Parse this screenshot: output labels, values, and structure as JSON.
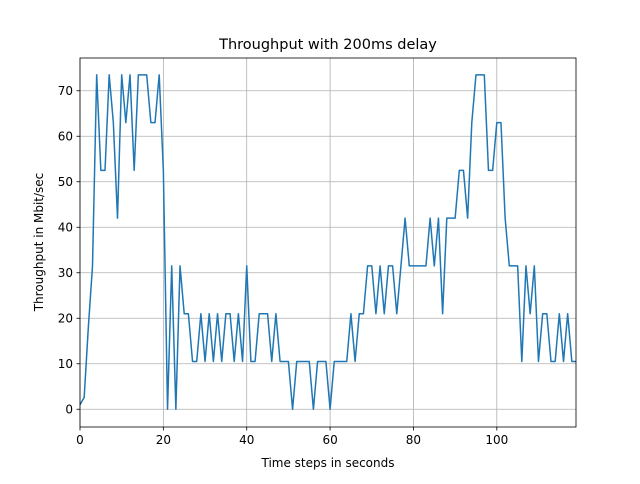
{
  "chart_data": {
    "type": "line",
    "title": "Throughput with 200ms delay",
    "x_label": "Time steps in seconds",
    "y_label": "Throughput in Mbit/sec",
    "x": [
      0,
      1,
      2,
      3,
      4,
      5,
      6,
      7,
      8,
      9,
      10,
      11,
      12,
      13,
      14,
      15,
      16,
      17,
      18,
      19,
      20,
      21,
      22,
      23,
      24,
      25,
      26,
      27,
      28,
      29,
      30,
      31,
      32,
      33,
      34,
      35,
      36,
      37,
      38,
      39,
      40,
      41,
      42,
      43,
      44,
      45,
      46,
      47,
      48,
      49,
      50,
      51,
      52,
      53,
      54,
      55,
      56,
      57,
      58,
      59,
      60,
      61,
      62,
      63,
      64,
      65,
      66,
      67,
      68,
      69,
      70,
      71,
      72,
      73,
      74,
      75,
      76,
      77,
      78,
      79,
      80,
      81,
      82,
      83,
      84,
      85,
      86,
      87,
      88,
      89,
      90,
      91,
      92,
      93,
      94,
      95,
      96,
      97,
      98,
      99,
      100,
      101,
      102,
      103,
      104,
      105,
      106,
      107,
      108,
      109,
      110,
      111,
      112,
      113,
      114,
      115,
      116,
      117,
      118,
      119
    ],
    "series": [
      {
        "name": "throughput",
        "color": "#1f77b4",
        "values": [
          1,
          2.6,
          18,
          31.5,
          73.5,
          52.5,
          52.5,
          73.5,
          63,
          42,
          73.5,
          63,
          73.5,
          52.5,
          73.5,
          73.5,
          73.5,
          63,
          63,
          73.5,
          52.5,
          0,
          31.5,
          0,
          31.5,
          21,
          21,
          10.5,
          10.5,
          21,
          10.5,
          21,
          10.5,
          21,
          10.5,
          21,
          21,
          10.5,
          21,
          10.5,
          31.5,
          10.5,
          10.5,
          21,
          21,
          21,
          10.5,
          21,
          10.5,
          10.5,
          10.5,
          0,
          10.5,
          10.5,
          10.5,
          10.5,
          0,
          10.5,
          10.5,
          10.5,
          0,
          10.5,
          10.5,
          10.5,
          10.5,
          21,
          10.5,
          21,
          21,
          31.5,
          31.5,
          21,
          31.5,
          21,
          31.5,
          31.5,
          21,
          31.5,
          42,
          31.5,
          31.5,
          31.5,
          31.5,
          31.5,
          42,
          31.5,
          42,
          21,
          42,
          42,
          42,
          52.5,
          52.5,
          42,
          63,
          73.5,
          73.5,
          73.5,
          52.5,
          52.5,
          63,
          63,
          42,
          31.5,
          31.5,
          31.5,
          10.5,
          31.5,
          21,
          31.5,
          10.5,
          21,
          21,
          10.5,
          10.5,
          21,
          10.5,
          21,
          10.5,
          10.5
        ]
      }
    ],
    "xlim": [
      0,
      119
    ],
    "ylim": [
      -3.9,
      77.2
    ],
    "xticks": [
      0,
      20,
      40,
      60,
      80,
      100
    ],
    "yticks": [
      0,
      10,
      20,
      30,
      40,
      50,
      60,
      70
    ],
    "grid": true
  }
}
